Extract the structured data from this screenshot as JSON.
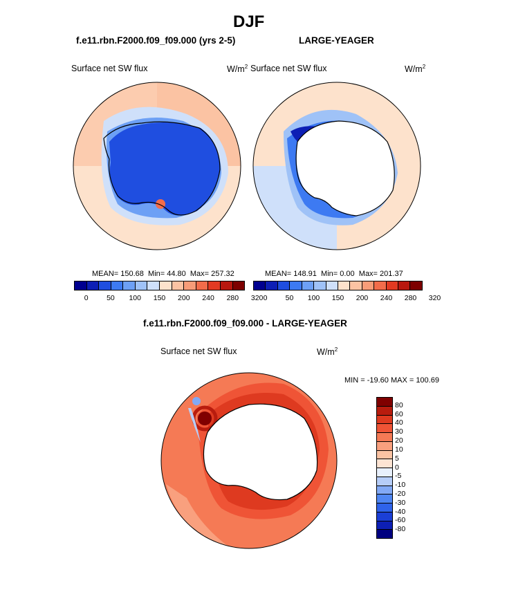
{
  "page": {
    "title": "DJF",
    "left_case": "f.e11.rbn.F2000.f09_f09.000 (yrs 2-5)",
    "right_case": "LARGE-YEAGER",
    "diff_title": "f.e11.rbn.F2000.f09_f09.000 - LARGE-YEAGER"
  },
  "colors": {
    "abs_scale": [
      "#00008f",
      "#0d1fb5",
      "#1f4ee0",
      "#3d7af2",
      "#6da0f5",
      "#9fc2f7",
      "#cfe0fa",
      "#fde2cc",
      "#fbc3a3",
      "#f79c78",
      "#f26c4a",
      "#e23a22",
      "#b8170f",
      "#7d0000"
    ],
    "diff_scale": [
      "#000080",
      "#0d1fb5",
      "#1b3fd6",
      "#2f63ea",
      "#4f86f2",
      "#82a9f5",
      "#b6cdf8",
      "#e8f0fc",
      "#fde4d3",
      "#fbc3a3",
      "#f9a07e",
      "#f57a55",
      "#ef5436",
      "#de3a20",
      "#b81c0e",
      "#800000"
    ],
    "land": "#ffffff",
    "coast": "#000000"
  },
  "chart_data": [
    {
      "type": "heatmap",
      "panel": "left",
      "projection": "south-polar-stereographic",
      "title": "Surface net SW flux",
      "units": "W/m",
      "units_sup": "2",
      "stats": {
        "mean_label": "MEAN= 150.68",
        "min_label": "Min=  44.80",
        "max_label": "Max= 257.32"
      },
      "mean": 150.68,
      "min": 44.8,
      "max": 257.32,
      "colorbar_ticks": [
        "0",
        "50",
        "100",
        "150",
        "200",
        "240",
        "280",
        "320"
      ],
      "levels": [
        0,
        25,
        50,
        75,
        100,
        125,
        150,
        175,
        200,
        220,
        240,
        260,
        280,
        300,
        320
      ]
    },
    {
      "type": "heatmap",
      "panel": "right",
      "projection": "south-polar-stereographic",
      "title": "Surface net SW flux",
      "units": "W/m",
      "units_sup": "2",
      "stats": {
        "mean_label": "MEAN= 148.91",
        "min_label": "Min=   0.00",
        "max_label": "Max= 201.37"
      },
      "mean": 148.91,
      "min": 0.0,
      "max": 201.37,
      "colorbar_ticks": [
        "0",
        "50",
        "100",
        "150",
        "200",
        "240",
        "280",
        "320"
      ],
      "levels": [
        0,
        25,
        50,
        75,
        100,
        125,
        150,
        175,
        200,
        220,
        240,
        260,
        280,
        300,
        320
      ]
    },
    {
      "type": "heatmap",
      "panel": "difference",
      "projection": "south-polar-stereographic",
      "title": "Surface net SW flux",
      "units": "W/m",
      "units_sup": "2",
      "minmax_label": "MIN = -19.60 MAX = 100.69",
      "min": -19.6,
      "max": 100.69,
      "colorbar_labels": [
        "80",
        "60",
        "40",
        "30",
        "20",
        "10",
        "5",
        "0",
        "-5",
        "-10",
        "-20",
        "-30",
        "-40",
        "-60",
        "-80"
      ]
    }
  ]
}
